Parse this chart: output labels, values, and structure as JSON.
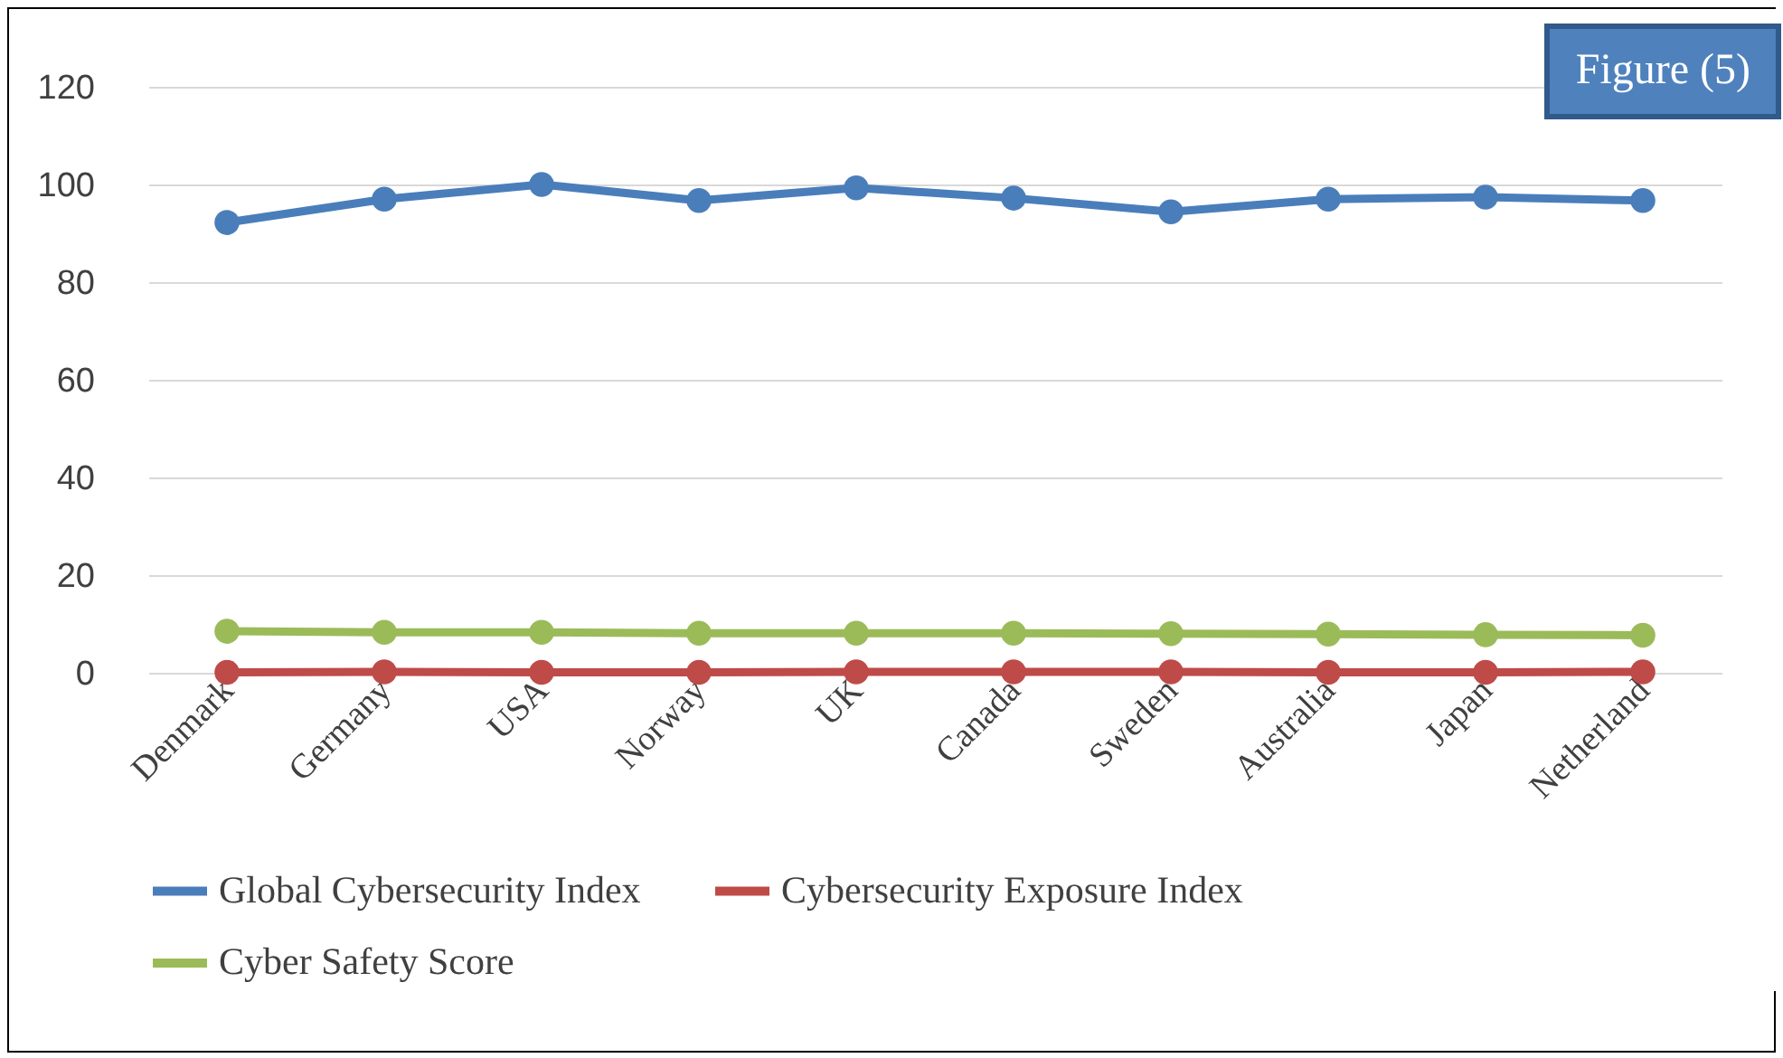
{
  "chart_data": {
    "type": "line",
    "categories": [
      "Denmark",
      "Germany",
      "USA",
      "Norway",
      "UK",
      "Canada",
      "Sweden",
      "Australia",
      "Japan",
      "Netherland"
    ],
    "series": [
      {
        "name": "Global Cybersecurity Index",
        "color": "#4a7ebb",
        "values": [
          92.2,
          97.0,
          100,
          96.7,
          99.3,
          97.2,
          94.4,
          97.0,
          97.4,
          96.7
        ]
      },
      {
        "name": "Cybersecurity Exposure Index",
        "color": "#be4b48",
        "values": [
          0.1,
          0.2,
          0.1,
          0.1,
          0.2,
          0.2,
          0.2,
          0.1,
          0.1,
          0.2
        ]
      },
      {
        "name": "Cyber Safety Score",
        "color": "#9bbb59",
        "values": [
          8.5,
          8.3,
          8.3,
          8.1,
          8.1,
          8.1,
          8.0,
          7.9,
          7.8,
          7.7
        ]
      }
    ],
    "ylim": [
      0,
      120
    ],
    "yticks": [
      0,
      20,
      40,
      60,
      80,
      100,
      120
    ],
    "grid": "y",
    "legend": "bottom",
    "marker": "circle",
    "line_style": "solid",
    "annotations": [
      "Figure (5)"
    ]
  }
}
